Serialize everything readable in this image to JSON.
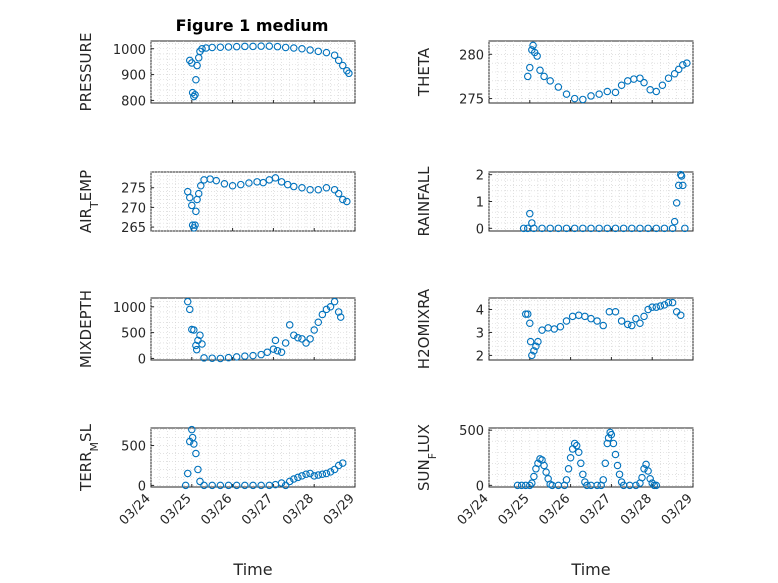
{
  "figure": {
    "title": "Figure 1 medium"
  },
  "x_tick_labels": [
    "03/24",
    "03/25",
    "03/26",
    "03/27",
    "03/28",
    "03/29"
  ],
  "chart_data": [
    {
      "type": "scatter",
      "ylabel": "PRESSURE",
      "xlabel": "",
      "xlim": [
        0,
        5
      ],
      "ylim": [
        790,
        1030
      ],
      "yticks": [
        800,
        900,
        1000
      ],
      "x_tick_labels_visible": false,
      "title": "Figure 1 medium",
      "color": "#0072bd",
      "points": [
        [
          0.95,
          955
        ],
        [
          1.0,
          945
        ],
        [
          1.02,
          830
        ],
        [
          1.05,
          815
        ],
        [
          1.08,
          822
        ],
        [
          1.1,
          880
        ],
        [
          1.13,
          935
        ],
        [
          1.17,
          965
        ],
        [
          1.2,
          990
        ],
        [
          1.25,
          1000
        ],
        [
          1.35,
          1003
        ],
        [
          1.5,
          1005
        ],
        [
          1.7,
          1006
        ],
        [
          1.9,
          1007
        ],
        [
          2.1,
          1008
        ],
        [
          2.3,
          1009
        ],
        [
          2.5,
          1009
        ],
        [
          2.7,
          1010
        ],
        [
          2.9,
          1010
        ],
        [
          3.1,
          1008
        ],
        [
          3.3,
          1005
        ],
        [
          3.5,
          1003
        ],
        [
          3.7,
          1000
        ],
        [
          3.9,
          995
        ],
        [
          4.1,
          990
        ],
        [
          4.3,
          985
        ],
        [
          4.5,
          975
        ],
        [
          4.6,
          955
        ],
        [
          4.7,
          935
        ],
        [
          4.8,
          915
        ],
        [
          4.85,
          905
        ]
      ]
    },
    {
      "type": "scatter",
      "ylabel": "THETA",
      "xlabel": "",
      "xlim": [
        0,
        5
      ],
      "ylim": [
        274.5,
        281.5
      ],
      "yticks": [
        275,
        280
      ],
      "x_tick_labels_visible": false,
      "color": "#0072bd",
      "points": [
        [
          0.95,
          277.5
        ],
        [
          1.0,
          278.5
        ],
        [
          1.05,
          280.5
        ],
        [
          1.08,
          281.0
        ],
        [
          1.12,
          280.2
        ],
        [
          1.18,
          279.8
        ],
        [
          1.25,
          278.2
        ],
        [
          1.35,
          277.5
        ],
        [
          1.5,
          277
        ],
        [
          1.7,
          276.3
        ],
        [
          1.9,
          275.5
        ],
        [
          2.1,
          275.0
        ],
        [
          2.3,
          274.9
        ],
        [
          2.5,
          275.3
        ],
        [
          2.7,
          275.5
        ],
        [
          2.9,
          275.8
        ],
        [
          3.1,
          275.7
        ],
        [
          3.25,
          276.5
        ],
        [
          3.4,
          277.0
        ],
        [
          3.55,
          277.2
        ],
        [
          3.7,
          277.3
        ],
        [
          3.8,
          276.8
        ],
        [
          3.95,
          276.0
        ],
        [
          4.1,
          275.8
        ],
        [
          4.25,
          276.5
        ],
        [
          4.4,
          277.3
        ],
        [
          4.55,
          277.8
        ],
        [
          4.65,
          278.3
        ],
        [
          4.75,
          278.8
        ],
        [
          4.85,
          279.0
        ]
      ]
    },
    {
      "type": "scatter",
      "ylabel": "AIR_TEMP",
      "xlabel": "",
      "xlim": [
        0,
        5
      ],
      "ylim": [
        264,
        279
      ],
      "yticks": [
        265,
        270,
        275
      ],
      "x_tick_labels_visible": false,
      "color": "#0072bd",
      "points": [
        [
          0.9,
          274
        ],
        [
          0.95,
          272.5
        ],
        [
          1.0,
          270.5
        ],
        [
          1.02,
          265.5
        ],
        [
          1.05,
          264.8
        ],
        [
          1.08,
          265.5
        ],
        [
          1.1,
          269
        ],
        [
          1.13,
          272
        ],
        [
          1.17,
          273.5
        ],
        [
          1.22,
          275.5
        ],
        [
          1.3,
          277
        ],
        [
          1.45,
          277.2
        ],
        [
          1.6,
          276.8
        ],
        [
          1.8,
          276
        ],
        [
          2.0,
          275.5
        ],
        [
          2.2,
          275.8
        ],
        [
          2.4,
          276.2
        ],
        [
          2.6,
          276.5
        ],
        [
          2.75,
          276.3
        ],
        [
          2.9,
          277
        ],
        [
          3.05,
          277.5
        ],
        [
          3.2,
          276.5
        ],
        [
          3.35,
          275.8
        ],
        [
          3.5,
          275.3
        ],
        [
          3.7,
          275
        ],
        [
          3.9,
          274.5
        ],
        [
          4.1,
          274.5
        ],
        [
          4.3,
          275
        ],
        [
          4.5,
          274.5
        ],
        [
          4.6,
          273.5
        ],
        [
          4.7,
          272
        ],
        [
          4.8,
          271.5
        ]
      ]
    },
    {
      "type": "scatter",
      "ylabel": "RAINFALL",
      "xlabel": "",
      "xlim": [
        0,
        5
      ],
      "ylim": [
        -0.1,
        2.1
      ],
      "yticks": [
        0,
        1,
        2
      ],
      "x_tick_labels_visible": false,
      "color": "#0072bd",
      "points": [
        [
          0.85,
          0
        ],
        [
          0.95,
          0
        ],
        [
          1.0,
          0.55
        ],
        [
          1.05,
          0.2
        ],
        [
          1.1,
          0
        ],
        [
          1.3,
          0
        ],
        [
          1.5,
          0
        ],
        [
          1.7,
          0
        ],
        [
          1.9,
          0
        ],
        [
          2.1,
          0
        ],
        [
          2.3,
          0
        ],
        [
          2.5,
          0
        ],
        [
          2.7,
          0
        ],
        [
          2.9,
          0
        ],
        [
          3.1,
          0
        ],
        [
          3.3,
          0
        ],
        [
          3.5,
          0
        ],
        [
          3.7,
          0
        ],
        [
          3.9,
          0
        ],
        [
          4.1,
          0
        ],
        [
          4.3,
          0
        ],
        [
          4.5,
          0
        ],
        [
          4.55,
          0.25
        ],
        [
          4.6,
          0.95
        ],
        [
          4.65,
          1.6
        ],
        [
          4.7,
          2.0
        ],
        [
          4.72,
          1.95
        ],
        [
          4.75,
          1.6
        ],
        [
          4.8,
          0
        ]
      ]
    },
    {
      "type": "scatter",
      "ylabel": "MIXDEPTH",
      "xlabel": "",
      "xlim": [
        0,
        5
      ],
      "ylim": [
        -30,
        1170
      ],
      "yticks": [
        0,
        500,
        1000
      ],
      "x_tick_labels_visible": false,
      "color": "#0072bd",
      "points": [
        [
          0.9,
          1100
        ],
        [
          0.95,
          950
        ],
        [
          1.0,
          560
        ],
        [
          1.05,
          550
        ],
        [
          1.1,
          250
        ],
        [
          1.12,
          170
        ],
        [
          1.15,
          350
        ],
        [
          1.2,
          450
        ],
        [
          1.25,
          280
        ],
        [
          1.3,
          10
        ],
        [
          1.5,
          5
        ],
        [
          1.7,
          0
        ],
        [
          1.9,
          15
        ],
        [
          2.1,
          30
        ],
        [
          2.3,
          45
        ],
        [
          2.5,
          55
        ],
        [
          2.7,
          75
        ],
        [
          2.85,
          120
        ],
        [
          3.0,
          180
        ],
        [
          3.05,
          350
        ],
        [
          3.1,
          150
        ],
        [
          3.2,
          120
        ],
        [
          3.3,
          300
        ],
        [
          3.4,
          650
        ],
        [
          3.5,
          450
        ],
        [
          3.6,
          400
        ],
        [
          3.7,
          380
        ],
        [
          3.8,
          300
        ],
        [
          3.9,
          380
        ],
        [
          4.0,
          550
        ],
        [
          4.1,
          700
        ],
        [
          4.2,
          850
        ],
        [
          4.3,
          950
        ],
        [
          4.4,
          1000
        ],
        [
          4.5,
          1100
        ],
        [
          4.6,
          900
        ],
        [
          4.65,
          800
        ]
      ]
    },
    {
      "type": "scatter",
      "ylabel": "H2OMIXRA",
      "xlabel": "",
      "xlim": [
        0,
        5
      ],
      "ylim": [
        1.8,
        4.5
      ],
      "yticks": [
        2,
        3,
        4
      ],
      "x_tick_labels_visible": false,
      "color": "#0072bd",
      "points": [
        [
          0.9,
          3.8
        ],
        [
          0.95,
          3.8
        ],
        [
          1.0,
          3.4
        ],
        [
          1.02,
          2.6
        ],
        [
          1.05,
          2.0
        ],
        [
          1.1,
          2.2
        ],
        [
          1.15,
          2.4
        ],
        [
          1.2,
          2.6
        ],
        [
          1.3,
          3.1
        ],
        [
          1.45,
          3.2
        ],
        [
          1.6,
          3.15
        ],
        [
          1.75,
          3.25
        ],
        [
          1.9,
          3.5
        ],
        [
          2.05,
          3.7
        ],
        [
          2.2,
          3.75
        ],
        [
          2.35,
          3.7
        ],
        [
          2.5,
          3.6
        ],
        [
          2.65,
          3.5
        ],
        [
          2.8,
          3.3
        ],
        [
          2.95,
          3.9
        ],
        [
          3.1,
          3.9
        ],
        [
          3.25,
          3.5
        ],
        [
          3.4,
          3.35
        ],
        [
          3.5,
          3.3
        ],
        [
          3.6,
          3.6
        ],
        [
          3.7,
          3.4
        ],
        [
          3.8,
          3.7
        ],
        [
          3.9,
          4.0
        ],
        [
          4.0,
          4.1
        ],
        [
          4.1,
          4.1
        ],
        [
          4.2,
          4.15
        ],
        [
          4.3,
          4.2
        ],
        [
          4.4,
          4.3
        ],
        [
          4.5,
          4.3
        ],
        [
          4.6,
          3.9
        ],
        [
          4.7,
          3.75
        ]
      ]
    },
    {
      "type": "scatter",
      "ylabel": "TERR_MSL",
      "xlabel": "Time",
      "xlim": [
        0,
        5
      ],
      "ylim": [
        -20,
        720
      ],
      "yticks": [
        0,
        500
      ],
      "x_tick_labels_visible": true,
      "color": "#0072bd",
      "points": [
        [
          0.85,
          0
        ],
        [
          0.9,
          150
        ],
        [
          0.95,
          550
        ],
        [
          1.0,
          700
        ],
        [
          1.02,
          600
        ],
        [
          1.05,
          520
        ],
        [
          1.1,
          400
        ],
        [
          1.15,
          200
        ],
        [
          1.2,
          50
        ],
        [
          1.3,
          0
        ],
        [
          1.5,
          0
        ],
        [
          1.7,
          0
        ],
        [
          1.9,
          0
        ],
        [
          2.1,
          0
        ],
        [
          2.3,
          0
        ],
        [
          2.5,
          0
        ],
        [
          2.7,
          0
        ],
        [
          2.9,
          0
        ],
        [
          3.05,
          10
        ],
        [
          3.2,
          30
        ],
        [
          3.3,
          0
        ],
        [
          3.4,
          50
        ],
        [
          3.5,
          80
        ],
        [
          3.6,
          100
        ],
        [
          3.7,
          120
        ],
        [
          3.8,
          140
        ],
        [
          3.9,
          150
        ],
        [
          4.0,
          120
        ],
        [
          4.1,
          130
        ],
        [
          4.2,
          140
        ],
        [
          4.3,
          150
        ],
        [
          4.4,
          170
        ],
        [
          4.5,
          200
        ],
        [
          4.6,
          250
        ],
        [
          4.7,
          280
        ]
      ]
    },
    {
      "type": "scatter",
      "ylabel": "SUN_FLUX",
      "xlabel": "Time",
      "xlim": [
        0,
        5
      ],
      "ylim": [
        -15,
        520
      ],
      "yticks": [
        0,
        500
      ],
      "x_tick_labels_visible": true,
      "color": "#0072bd",
      "points": [
        [
          0.7,
          0
        ],
        [
          0.8,
          0
        ],
        [
          0.9,
          0
        ],
        [
          1.0,
          0
        ],
        [
          1.05,
          20
        ],
        [
          1.1,
          80
        ],
        [
          1.15,
          150
        ],
        [
          1.2,
          200
        ],
        [
          1.25,
          240
        ],
        [
          1.3,
          230
        ],
        [
          1.35,
          180
        ],
        [
          1.4,
          120
        ],
        [
          1.45,
          60
        ],
        [
          1.5,
          10
        ],
        [
          1.55,
          0
        ],
        [
          1.7,
          0
        ],
        [
          1.85,
          0
        ],
        [
          1.9,
          50
        ],
        [
          1.95,
          150
        ],
        [
          2.0,
          250
        ],
        [
          2.05,
          330
        ],
        [
          2.1,
          380
        ],
        [
          2.15,
          360
        ],
        [
          2.2,
          300
        ],
        [
          2.25,
          200
        ],
        [
          2.3,
          100
        ],
        [
          2.35,
          30
        ],
        [
          2.4,
          0
        ],
        [
          2.5,
          0
        ],
        [
          2.65,
          0
        ],
        [
          2.75,
          0
        ],
        [
          2.8,
          50
        ],
        [
          2.85,
          200
        ],
        [
          2.9,
          380
        ],
        [
          2.93,
          430
        ],
        [
          2.97,
          480
        ],
        [
          3.0,
          460
        ],
        [
          3.05,
          380
        ],
        [
          3.1,
          280
        ],
        [
          3.15,
          180
        ],
        [
          3.2,
          100
        ],
        [
          3.25,
          30
        ],
        [
          3.3,
          0
        ],
        [
          3.45,
          0
        ],
        [
          3.6,
          0
        ],
        [
          3.7,
          20
        ],
        [
          3.75,
          70
        ],
        [
          3.8,
          150
        ],
        [
          3.85,
          190
        ],
        [
          3.9,
          130
        ],
        [
          3.95,
          60
        ],
        [
          4.0,
          20
        ],
        [
          4.05,
          0
        ],
        [
          4.1,
          0
        ]
      ]
    }
  ]
}
